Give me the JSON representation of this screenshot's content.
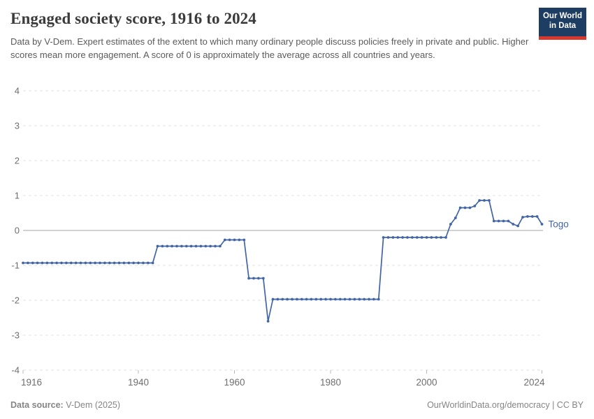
{
  "header": {
    "subtitle": "Data by V-Dem. Expert estimates of the extent to which many ordinary people discuss policies freely in private and public. Higher scores mean more engagement. A score of 0 is approximately the average across all countries and years.",
    "logo_line1": "Our World",
    "logo_line2": "in Data",
    "logo_bg_color": "#1d3d63",
    "logo_accent_color": "#d7382e"
  },
  "chart_data": {
    "type": "line",
    "title": "Engaged society score, 1916 to 2024",
    "xlabel": "",
    "ylabel": "",
    "xlim": [
      1916,
      2024
    ],
    "ylim": [
      -4,
      4
    ],
    "x_ticks": [
      1916,
      1940,
      1960,
      1980,
      2000,
      2024
    ],
    "y_ticks": [
      4,
      3,
      2,
      1,
      0,
      -1,
      -2,
      -3,
      -4
    ],
    "grid": "horizontal dashed gridlines, solid gray zero line",
    "legend_position": "label at end of line",
    "marker": "small filled circles on every yearly point",
    "series": [
      {
        "name": "Togo",
        "color": "#4265a5",
        "points": [
          [
            1916,
            -0.93
          ],
          [
            1917,
            -0.93
          ],
          [
            1918,
            -0.93
          ],
          [
            1919,
            -0.93
          ],
          [
            1920,
            -0.93
          ],
          [
            1921,
            -0.93
          ],
          [
            1922,
            -0.93
          ],
          [
            1923,
            -0.93
          ],
          [
            1924,
            -0.93
          ],
          [
            1925,
            -0.93
          ],
          [
            1926,
            -0.93
          ],
          [
            1927,
            -0.93
          ],
          [
            1928,
            -0.93
          ],
          [
            1929,
            -0.93
          ],
          [
            1930,
            -0.93
          ],
          [
            1931,
            -0.93
          ],
          [
            1932,
            -0.93
          ],
          [
            1933,
            -0.93
          ],
          [
            1934,
            -0.93
          ],
          [
            1935,
            -0.93
          ],
          [
            1936,
            -0.93
          ],
          [
            1937,
            -0.93
          ],
          [
            1938,
            -0.93
          ],
          [
            1939,
            -0.93
          ],
          [
            1940,
            -0.93
          ],
          [
            1941,
            -0.93
          ],
          [
            1942,
            -0.93
          ],
          [
            1943,
            -0.93
          ],
          [
            1944,
            -0.45
          ],
          [
            1945,
            -0.45
          ],
          [
            1946,
            -0.45
          ],
          [
            1947,
            -0.45
          ],
          [
            1948,
            -0.45
          ],
          [
            1949,
            -0.45
          ],
          [
            1950,
            -0.45
          ],
          [
            1951,
            -0.45
          ],
          [
            1952,
            -0.45
          ],
          [
            1953,
            -0.45
          ],
          [
            1954,
            -0.45
          ],
          [
            1955,
            -0.45
          ],
          [
            1956,
            -0.45
          ],
          [
            1957,
            -0.45
          ],
          [
            1958,
            -0.27
          ],
          [
            1959,
            -0.27
          ],
          [
            1960,
            -0.27
          ],
          [
            1961,
            -0.27
          ],
          [
            1962,
            -0.27
          ],
          [
            1963,
            -1.37
          ],
          [
            1964,
            -1.37
          ],
          [
            1965,
            -1.37
          ],
          [
            1966,
            -1.37
          ],
          [
            1967,
            -2.6
          ],
          [
            1968,
            -1.97
          ],
          [
            1969,
            -1.97
          ],
          [
            1970,
            -1.97
          ],
          [
            1971,
            -1.97
          ],
          [
            1972,
            -1.97
          ],
          [
            1973,
            -1.97
          ],
          [
            1974,
            -1.97
          ],
          [
            1975,
            -1.97
          ],
          [
            1976,
            -1.97
          ],
          [
            1977,
            -1.97
          ],
          [
            1978,
            -1.97
          ],
          [
            1979,
            -1.97
          ],
          [
            1980,
            -1.97
          ],
          [
            1981,
            -1.97
          ],
          [
            1982,
            -1.97
          ],
          [
            1983,
            -1.97
          ],
          [
            1984,
            -1.97
          ],
          [
            1985,
            -1.97
          ],
          [
            1986,
            -1.97
          ],
          [
            1987,
            -1.97
          ],
          [
            1988,
            -1.97
          ],
          [
            1989,
            -1.97
          ],
          [
            1990,
            -1.97
          ],
          [
            1991,
            -0.2
          ],
          [
            1992,
            -0.2
          ],
          [
            1993,
            -0.2
          ],
          [
            1994,
            -0.2
          ],
          [
            1995,
            -0.2
          ],
          [
            1996,
            -0.2
          ],
          [
            1997,
            -0.2
          ],
          [
            1998,
            -0.2
          ],
          [
            1999,
            -0.2
          ],
          [
            2000,
            -0.2
          ],
          [
            2001,
            -0.2
          ],
          [
            2002,
            -0.2
          ],
          [
            2003,
            -0.2
          ],
          [
            2004,
            -0.2
          ],
          [
            2005,
            0.18
          ],
          [
            2006,
            0.36
          ],
          [
            2007,
            0.65
          ],
          [
            2008,
            0.65
          ],
          [
            2009,
            0.65
          ],
          [
            2010,
            0.7
          ],
          [
            2011,
            0.86
          ],
          [
            2012,
            0.86
          ],
          [
            2013,
            0.86
          ],
          [
            2014,
            0.27
          ],
          [
            2015,
            0.27
          ],
          [
            2016,
            0.27
          ],
          [
            2017,
            0.27
          ],
          [
            2018,
            0.18
          ],
          [
            2019,
            0.13
          ],
          [
            2020,
            0.38
          ],
          [
            2021,
            0.4
          ],
          [
            2022,
            0.4
          ],
          [
            2023,
            0.4
          ],
          [
            2024,
            0.18
          ]
        ]
      }
    ],
    "colors": {
      "gridline": "#e0e0e0",
      "zero_line": "#a5a5a5",
      "axis_label": "#6e6e6e",
      "tick_mark": "#b8b8b8"
    }
  },
  "footer": {
    "source_label": "Data source:",
    "source_value": "V-Dem (2025)",
    "attribution": "OurWorldinData.org/democracy | CC BY"
  }
}
